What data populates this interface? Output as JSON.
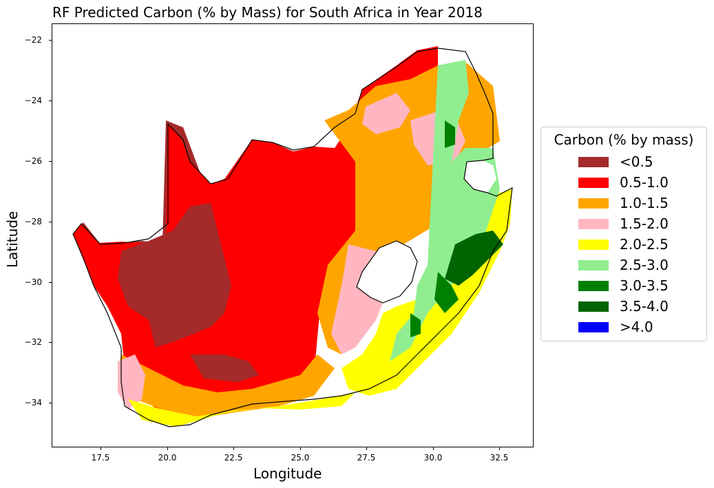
{
  "title": "RF Predicted Carbon (% by Mass) for South Africa in Year 2018",
  "xlabel": "Longitude",
  "ylabel": "Latitude",
  "x_ticks": [
    "17.5",
    "20.0",
    "22.5",
    "25.0",
    "27.5",
    "30.0",
    "32.5"
  ],
  "y_ticks": [
    "−22",
    "−24",
    "−26",
    "−28",
    "−30",
    "−32",
    "−34"
  ],
  "legend": {
    "title": "Carbon (% by mass)",
    "items": [
      {
        "label": "<0.5",
        "color": "#a52a2a"
      },
      {
        "label": "0.5-1.0",
        "color": "#ff0000"
      },
      {
        "label": "1.0-1.5",
        "color": "#ffa500"
      },
      {
        "label": "1.5-2.0",
        "color": "#ffb6c1"
      },
      {
        "label": "2.0-2.5",
        "color": "#ffff00"
      },
      {
        "label": "2.5-3.0",
        "color": "#90ee90"
      },
      {
        "label": "3.0-3.5",
        "color": "#008000"
      },
      {
        "label": "3.5-4.0",
        "color": "#006400"
      },
      {
        "label": ">4.0",
        "color": "#0000ff"
      }
    ]
  },
  "map": {
    "region": "South Africa",
    "xlim": [
      15.7,
      33.9
    ],
    "ylim": [
      -35.5,
      -21.5
    ],
    "border_color": "#000000"
  }
}
